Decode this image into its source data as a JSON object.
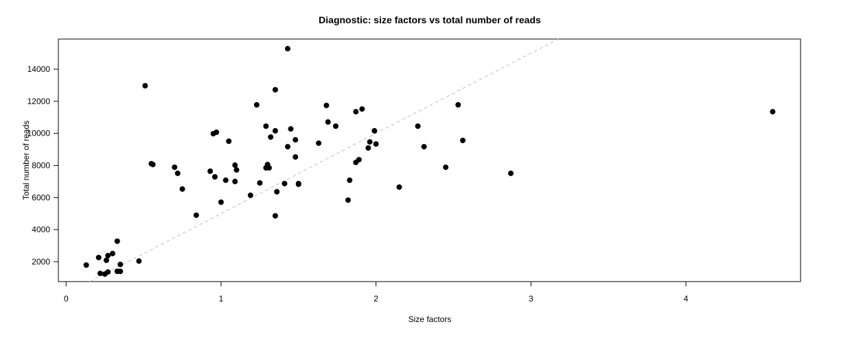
{
  "chart_data": {
    "type": "scatter",
    "title": "Diagnostic: size factors vs total number of reads",
    "xlabel": "Size factors",
    "ylabel": "Total number of reads",
    "xlim": [
      -0.05,
      4.74
    ],
    "ylim": [
      760,
      15880
    ],
    "xticks": [
      0,
      1,
      2,
      3,
      4
    ],
    "yticks": [
      2000,
      4000,
      6000,
      8000,
      10000,
      12000,
      14000
    ],
    "grid": false,
    "point_color": "#000000",
    "reference_line": {
      "style": "dashed",
      "color": "#c8c8c8",
      "intercept": 0,
      "slope": 5000
    },
    "points": [
      [
        0.13,
        1790
      ],
      [
        0.21,
        2260
      ],
      [
        0.22,
        1270
      ],
      [
        0.25,
        1230
      ],
      [
        0.26,
        2090
      ],
      [
        0.27,
        2380
      ],
      [
        0.27,
        1360
      ],
      [
        0.3,
        2510
      ],
      [
        0.33,
        3280
      ],
      [
        0.33,
        1400
      ],
      [
        0.35,
        1400
      ],
      [
        0.35,
        1830
      ],
      [
        0.47,
        2040
      ],
      [
        0.51,
        12970
      ],
      [
        0.55,
        8110
      ],
      [
        0.56,
        8060
      ],
      [
        0.7,
        7890
      ],
      [
        0.72,
        7510
      ],
      [
        0.75,
        6530
      ],
      [
        0.84,
        4900
      ],
      [
        0.93,
        7640
      ],
      [
        0.95,
        9980
      ],
      [
        0.96,
        7290
      ],
      [
        0.97,
        10070
      ],
      [
        1.0,
        5710
      ],
      [
        1.03,
        7080
      ],
      [
        1.05,
        9510
      ],
      [
        1.09,
        7000
      ],
      [
        1.09,
        8020
      ],
      [
        1.1,
        7720
      ],
      [
        1.19,
        6140
      ],
      [
        1.23,
        11780
      ],
      [
        1.25,
        6910
      ],
      [
        1.29,
        10450
      ],
      [
        1.29,
        7850
      ],
      [
        1.3,
        8060
      ],
      [
        1.31,
        7850
      ],
      [
        1.32,
        9770
      ],
      [
        1.35,
        12720
      ],
      [
        1.35,
        10160
      ],
      [
        1.35,
        4860
      ],
      [
        1.36,
        6360
      ],
      [
        1.41,
        6870
      ],
      [
        1.43,
        15280
      ],
      [
        1.43,
        9170
      ],
      [
        1.45,
        10280
      ],
      [
        1.48,
        9600
      ],
      [
        1.48,
        8530
      ],
      [
        1.5,
        6830
      ],
      [
        1.5,
        6870
      ],
      [
        1.63,
        9390
      ],
      [
        1.68,
        11740
      ],
      [
        1.69,
        10710
      ],
      [
        1.74,
        10450
      ],
      [
        1.82,
        5840
      ],
      [
        1.83,
        7080
      ],
      [
        1.87,
        11350
      ],
      [
        1.87,
        8190
      ],
      [
        1.89,
        8360
      ],
      [
        1.91,
        11520
      ],
      [
        1.95,
        9090
      ],
      [
        1.96,
        9470
      ],
      [
        1.99,
        10160
      ],
      [
        2.0,
        9340
      ],
      [
        2.15,
        6650
      ],
      [
        2.27,
        10450
      ],
      [
        2.31,
        9170
      ],
      [
        2.45,
        7890
      ],
      [
        2.53,
        11780
      ],
      [
        2.56,
        9560
      ],
      [
        2.87,
        7510
      ],
      [
        4.56,
        11350
      ]
    ]
  }
}
